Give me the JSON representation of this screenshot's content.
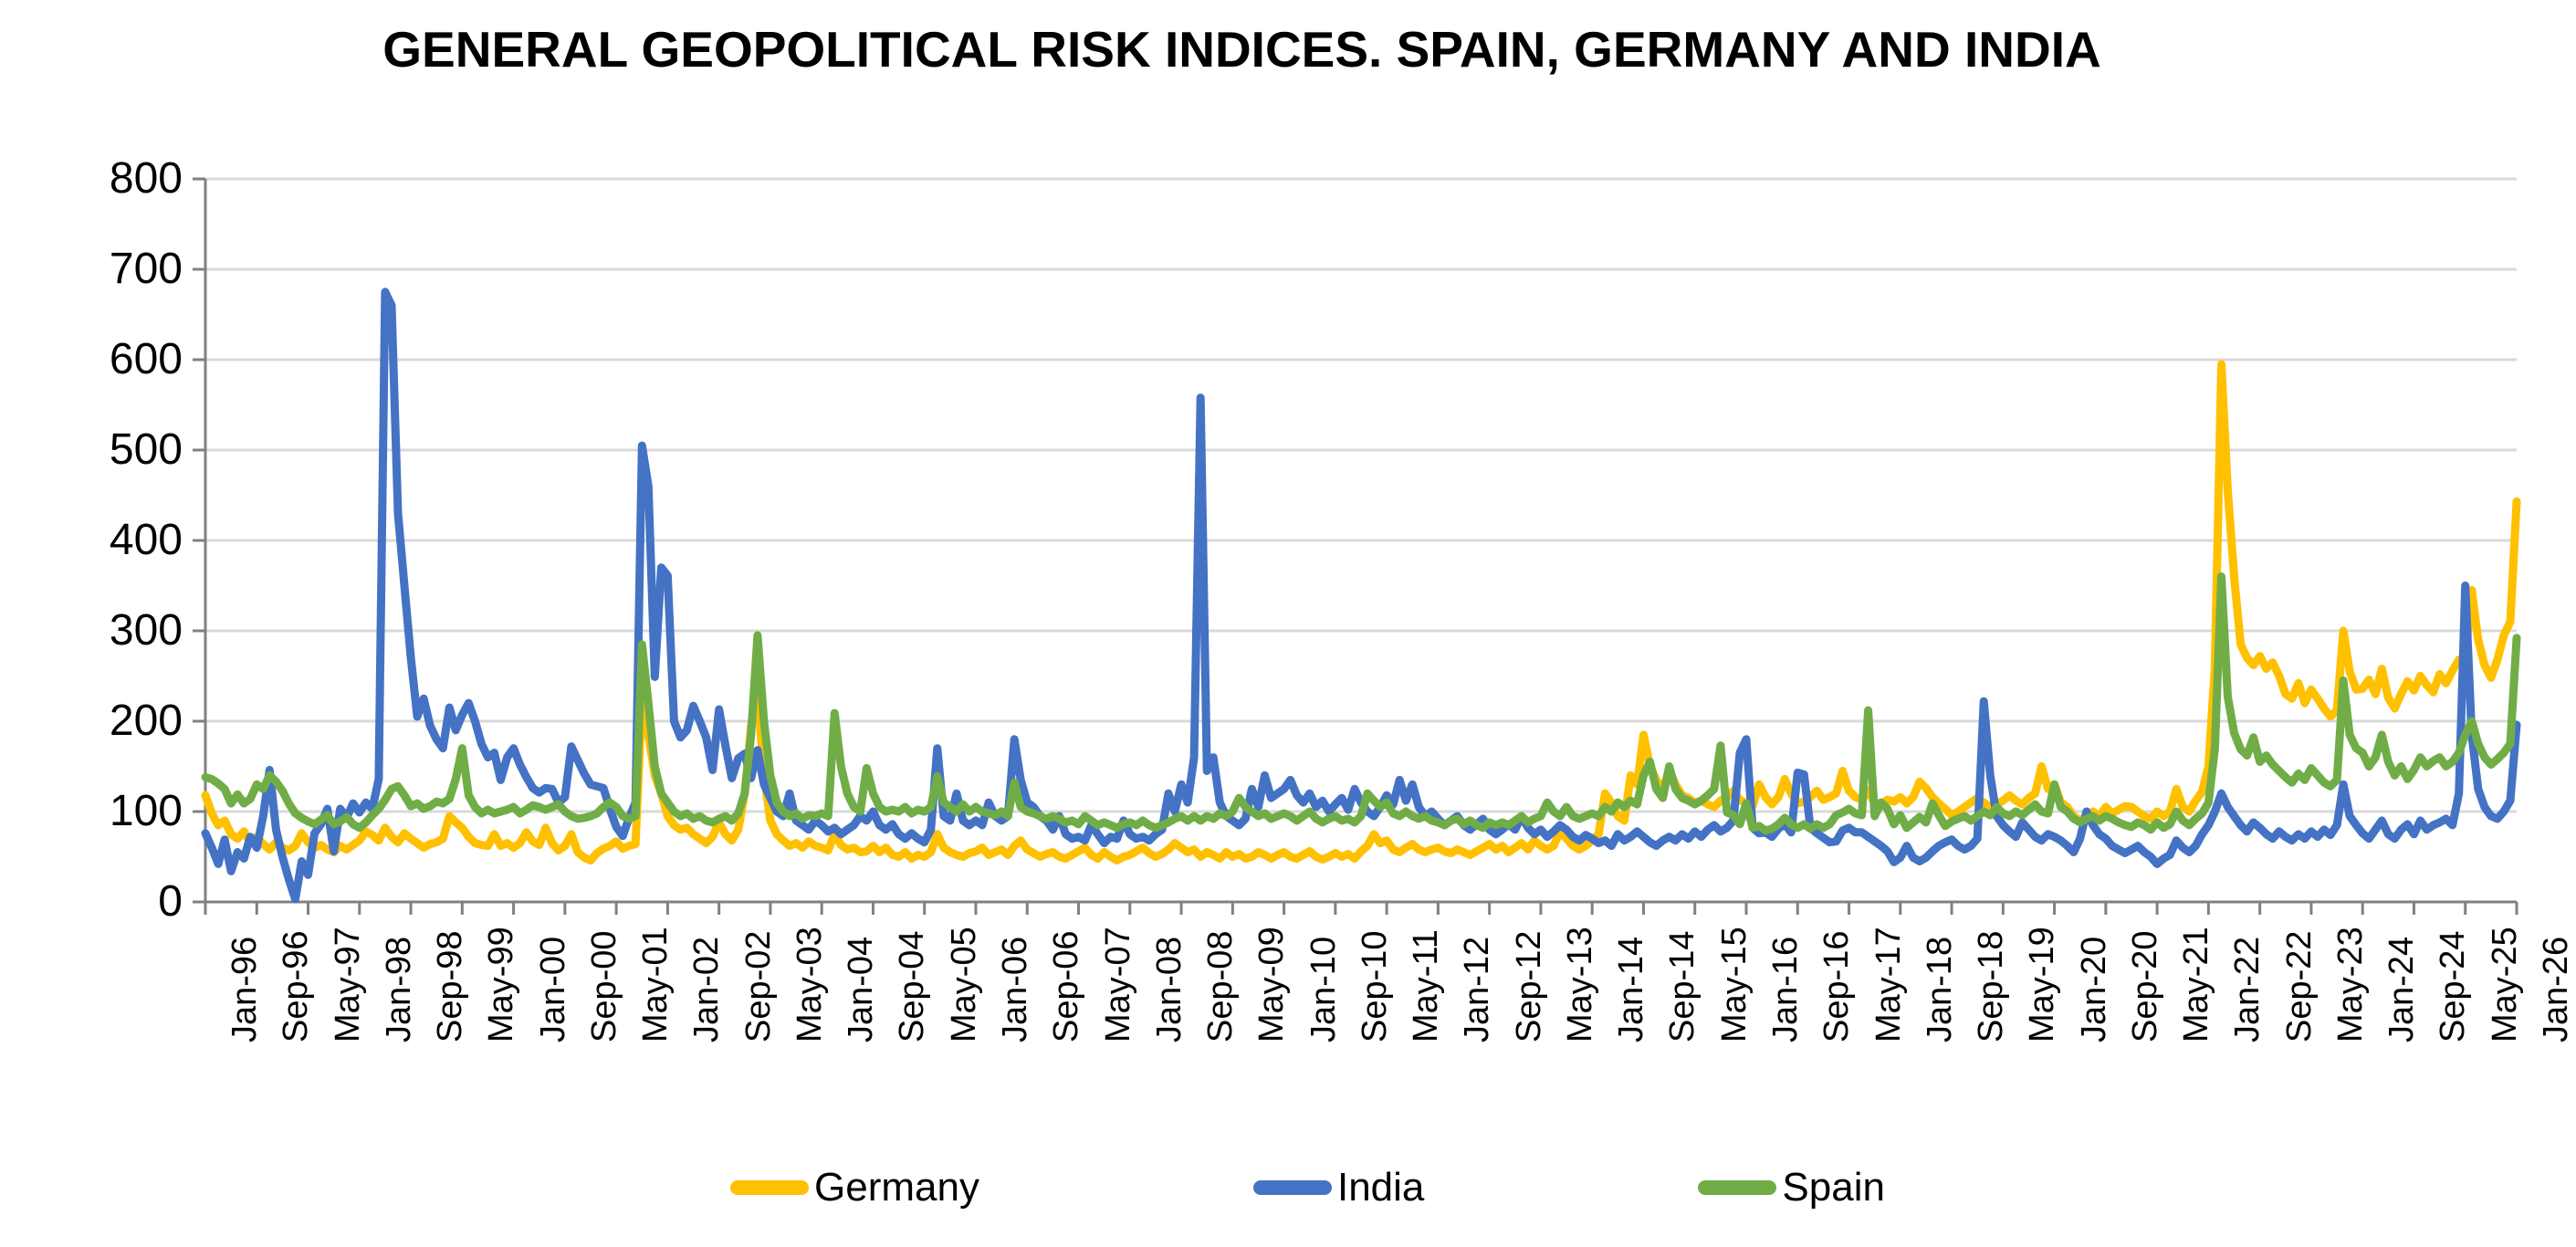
{
  "chart": {
    "title": "GENERAL GEOPOLITICAL RISK INDICES. SPAIN, GERMANY AND INDIA"
  },
  "colors": {
    "background": "#FFFFFF",
    "grid": "#D9D9D9",
    "axis": "#808080",
    "text": "#000000"
  },
  "chart_data": {
    "type": "line",
    "title": "GENERAL GEOPOLITICAL RISK INDICES. SPAIN, GERMANY AND INDIA",
    "xlabel": "",
    "ylabel": "",
    "x_start": "Jan-1996",
    "x_end": "Jan-2026",
    "frequency": "monthly",
    "n_points": 361,
    "ylim": [
      0,
      800
    ],
    "y_ticks": [
      0,
      100,
      200,
      300,
      400,
      500,
      600,
      700,
      800
    ],
    "grid": "horizontal-only",
    "legend_position": "bottom",
    "x_tick_labels": [
      "Jan-96",
      "Sep-96",
      "May-97",
      "Jan-98",
      "Sep-98",
      "May-99",
      "Jan-00",
      "Sep-00",
      "May-01",
      "Jan-02",
      "Sep-02",
      "May-03",
      "Jan-04",
      "Sep-04",
      "May-05",
      "Jan-06",
      "Sep-06",
      "May-07",
      "Jan-08",
      "Sep-08",
      "May-09",
      "Jan-10",
      "Sep-10",
      "May-11",
      "Jan-12",
      "Sep-12",
      "May-13",
      "Jan-14",
      "Sep-14",
      "May-15",
      "Jan-16",
      "Sep-16",
      "May-17",
      "Jan-18",
      "Sep-18",
      "May-19",
      "Jan-20",
      "Sep-20",
      "May-21",
      "Jan-22",
      "Sep-22",
      "May-23",
      "Jan-24",
      "Sep-24",
      "May-25",
      "Jan-26"
    ],
    "x_tick_month_interval": 8,
    "series": [
      {
        "name": "Germany",
        "color": "#FFC000",
        "values": [
          118,
          98,
          85,
          90,
          75,
          70,
          78,
          65,
          72,
          64,
          58,
          66,
          60,
          57,
          62,
          76,
          66,
          60,
          63,
          58,
          55,
          62,
          58,
          63,
          68,
          78,
          74,
          68,
          82,
          72,
          66,
          76,
          70,
          65,
          60,
          64,
          66,
          70,
          95,
          88,
          82,
          72,
          65,
          63,
          62,
          75,
          62,
          65,
          60,
          65,
          77,
          67,
          63,
          82,
          65,
          57,
          62,
          75,
          55,
          49,
          46,
          54,
          59,
          62,
          67,
          59,
          62,
          64,
          225,
          185,
          140,
          120,
          95,
          85,
          80,
          82,
          75,
          70,
          65,
          72,
          88,
          75,
          68,
          80,
          120,
          195,
          231,
          140,
          90,
          75,
          68,
          62,
          65,
          60,
          67,
          62,
          60,
          57,
          75,
          63,
          58,
          60,
          55,
          56,
          62,
          55,
          60,
          52,
          50,
          55,
          48,
          52,
          50,
          55,
          75,
          60,
          55,
          52,
          50,
          54,
          56,
          60,
          52,
          55,
          58,
          52,
          62,
          68,
          58,
          54,
          50,
          53,
          55,
          50,
          48,
          52,
          56,
          60,
          52,
          48,
          55,
          50,
          46,
          50,
          52,
          56,
          60,
          54,
          50,
          53,
          58,
          65,
          60,
          55,
          58,
          50,
          55,
          52,
          48,
          55,
          50,
          53,
          48,
          50,
          55,
          52,
          48,
          52,
          55,
          50,
          48,
          52,
          56,
          50,
          47,
          50,
          54,
          50,
          53,
          48,
          56,
          62,
          75,
          65,
          68,
          58,
          55,
          60,
          64,
          58,
          55,
          58,
          60,
          56,
          54,
          58,
          55,
          52,
          56,
          60,
          64,
          58,
          62,
          55,
          60,
          65,
          58,
          68,
          62,
          58,
          62,
          78,
          70,
          62,
          58,
          62,
          68,
          75,
          120,
          110,
          95,
          90,
          140,
          130,
          185,
          150,
          135,
          125,
          145,
          130,
          118,
          115,
          110,
          112,
          108,
          105,
          112,
          116,
          123,
          113,
          109,
          106,
          130,
          116,
          108,
          116,
          136,
          120,
          109,
          111,
          116,
          123,
          113,
          116,
          120,
          145,
          123,
          116,
          113,
          123,
          109,
          108,
          113,
          111,
          116,
          109,
          116,
          133,
          126,
          116,
          109,
          103,
          96,
          100,
          105,
          110,
          115,
          110,
          105,
          108,
          112,
          118,
          112,
          108,
          115,
          120,
          150,
          125,
          130,
          110,
          105,
          95,
          90,
          95,
          100,
          95,
          105,
          98,
          102,
          106,
          105,
          100,
          95,
          92,
          100,
          95,
          100,
          125,
          105,
          100,
          112,
          122,
          150,
          260,
          595,
          455,
          360,
          285,
          270,
          262,
          272,
          258,
          265,
          250,
          230,
          225,
          242,
          220,
          235,
          225,
          214,
          205,
          212,
          300,
          255,
          235,
          236,
          246,
          230,
          258,
          226,
          214,
          230,
          244,
          234,
          250,
          240,
          232,
          252,
          242,
          256,
          268,
          270,
          345,
          290,
          262,
          248,
          268,
          295,
          310,
          443
        ]
      },
      {
        "name": "India",
        "color": "#4472C4",
        "values": [
          76,
          60,
          42,
          69,
          34,
          55,
          48,
          72,
          60,
          95,
          146,
          80,
          50,
          25,
          3,
          45,
          30,
          76,
          86,
          103,
          56,
          103,
          93,
          109,
          99,
          110,
          103,
          136,
          675,
          660,
          430,
          350,
          270,
          205,
          225,
          195,
          180,
          170,
          215,
          190,
          207,
          220,
          200,
          175,
          160,
          165,
          135,
          160,
          170,
          152,
          138,
          126,
          121,
          126,
          125,
          110,
          116,
          172,
          157,
          142,
          130,
          128,
          126,
          103,
          83,
          73,
          93,
          110,
          505,
          460,
          249,
          370,
          361,
          200,
          182,
          190,
          217,
          200,
          182,
          146,
          213,
          173,
          137,
          159,
          164,
          137,
          168,
          130,
          115,
          100,
          95,
          120,
          90,
          85,
          80,
          90,
          85,
          78,
          82,
          75,
          80,
          85,
          95,
          90,
          100,
          85,
          80,
          86,
          75,
          70,
          76,
          70,
          66,
          80,
          170,
          95,
          90,
          120,
          90,
          85,
          90,
          85,
          110,
          95,
          90,
          95,
          180,
          135,
          110,
          105,
          95,
          90,
          80,
          95,
          75,
          70,
          72,
          68,
          85,
          75,
          65,
          72,
          70,
          90,
          75,
          70,
          72,
          68,
          75,
          80,
          120,
          100,
          130,
          110,
          160,
          558,
          145,
          160,
          110,
          95,
          90,
          85,
          92,
          125,
          105,
          140,
          115,
          120,
          125,
          135,
          118,
          110,
          120,
          105,
          112,
          100,
          108,
          115,
          102,
          125,
          110,
          100,
          95,
          105,
          118,
          108,
          135,
          112,
          130,
          105,
          95,
          100,
          92,
          85,
          90,
          95,
          85,
          80,
          86,
          92,
          80,
          75,
          80,
          86,
          80,
          95,
          82,
          75,
          80,
          72,
          78,
          85,
          80,
          72,
          68,
          74,
          70,
          65,
          68,
          62,
          75,
          68,
          72,
          78,
          72,
          66,
          62,
          68,
          72,
          68,
          75,
          70,
          78,
          72,
          80,
          85,
          78,
          82,
          90,
          165,
          180,
          82,
          76,
          77,
          72,
          81,
          86,
          77,
          143,
          141,
          82,
          76,
          71,
          66,
          67,
          79,
          82,
          77,
          77,
          72,
          67,
          62,
          56,
          44,
          49,
          62,
          49,
          45,
          49,
          56,
          62,
          66,
          69,
          62,
          58,
          62,
          70,
          222,
          140,
          95,
          85,
          78,
          72,
          88,
          80,
          72,
          68,
          75,
          72,
          68,
          62,
          55,
          70,
          100,
          85,
          75,
          70,
          62,
          58,
          54,
          58,
          62,
          55,
          50,
          42,
          48,
          52,
          68,
          60,
          55,
          62,
          75,
          85,
          100,
          120,
          105,
          95,
          85,
          78,
          88,
          82,
          75,
          70,
          78,
          72,
          68,
          75,
          70,
          78,
          72,
          80,
          74,
          85,
          130,
          95,
          85,
          76,
          70,
          80,
          90,
          75,
          70,
          80,
          86,
          75,
          90,
          80,
          85,
          88,
          92,
          85,
          120,
          350,
          185,
          125,
          105,
          95,
          92,
          100,
          112,
          196
        ]
      },
      {
        "name": "Spain",
        "color": "#70AD47",
        "values": [
          138,
          136,
          131,
          125,
          109,
          119,
          109,
          114,
          130,
          125,
          140,
          133,
          123,
          109,
          98,
          93,
          89,
          86,
          91,
          96,
          86,
          89,
          94,
          86,
          82,
          88,
          96,
          103,
          113,
          125,
          128,
          118,
          106,
          109,
          103,
          106,
          111,
          109,
          114,
          136,
          170,
          118,
          105,
          98,
          102,
          98,
          100,
          102,
          105,
          98,
          102,
          107,
          105,
          102,
          105,
          108,
          100,
          95,
          92,
          93,
          95,
          98,
          105,
          110,
          105,
          95,
          92,
          95,
          285,
          220,
          150,
          120,
          110,
          100,
          95,
          98,
          92,
          95,
          90,
          88,
          92,
          95,
          90,
          98,
          120,
          185,
          295,
          200,
          140,
          110,
          100,
          95,
          98,
          92,
          96,
          95,
          98,
          95,
          209,
          150,
          120,
          105,
          100,
          148,
          120,
          105,
          100,
          102,
          100,
          105,
          98,
          102,
          100,
          105,
          139,
          110,
          105,
          100,
          108,
          100,
          105,
          100,
          98,
          96,
          100,
          95,
          132,
          105,
          100,
          98,
          95,
          92,
          95,
          92,
          88,
          90,
          86,
          95,
          90,
          85,
          88,
          85,
          82,
          86,
          88,
          85,
          90,
          85,
          82,
          85,
          88,
          92,
          95,
          90,
          95,
          90,
          95,
          92,
          98,
          95,
          100,
          115,
          105,
          100,
          95,
          98,
          92,
          95,
          98,
          95,
          90,
          95,
          100,
          92,
          88,
          92,
          95,
          90,
          92,
          88,
          95,
          120,
          112,
          105,
          110,
          98,
          95,
          100,
          95,
          92,
          95,
          90,
          88,
          85,
          90,
          92,
          86,
          90,
          85,
          82,
          88,
          85,
          88,
          85,
          90,
          95,
          88,
          92,
          95,
          110,
          100,
          95,
          105,
          95,
          92,
          95,
          98,
          95,
          105,
          100,
          110,
          105,
          112,
          108,
          140,
          155,
          125,
          115,
          150,
          125,
          115,
          112,
          108,
          112,
          118,
          125,
          173,
          99,
          96,
          86,
          109,
          82,
          84,
          79,
          81,
          86,
          93,
          86,
          82,
          86,
          81,
          86,
          82,
          86,
          96,
          99,
          103,
          98,
          96,
          212,
          95,
          110,
          103,
          86,
          96,
          82,
          88,
          94,
          88,
          109,
          96,
          84,
          89,
          92,
          95,
          90,
          95,
          100,
          96,
          105,
          98,
          95,
          100,
          96,
          102,
          108,
          100,
          98,
          130,
          105,
          100,
          92,
          88,
          92,
          95,
          90,
          95,
          92,
          88,
          85,
          83,
          88,
          85,
          80,
          88,
          82,
          86,
          100,
          90,
          85,
          92,
          98,
          110,
          170,
          360,
          227,
          187,
          169,
          162,
          182,
          155,
          162,
          152,
          145,
          138,
          132,
          142,
          135,
          148,
          140,
          132,
          128,
          135,
          245,
          185,
          170,
          165,
          150,
          160,
          185,
          155,
          140,
          150,
          136,
          146,
          160,
          150,
          156,
          160,
          150,
          155,
          165,
          185,
          200,
          175,
          160,
          152,
          158,
          165,
          175,
          292
        ]
      }
    ]
  }
}
